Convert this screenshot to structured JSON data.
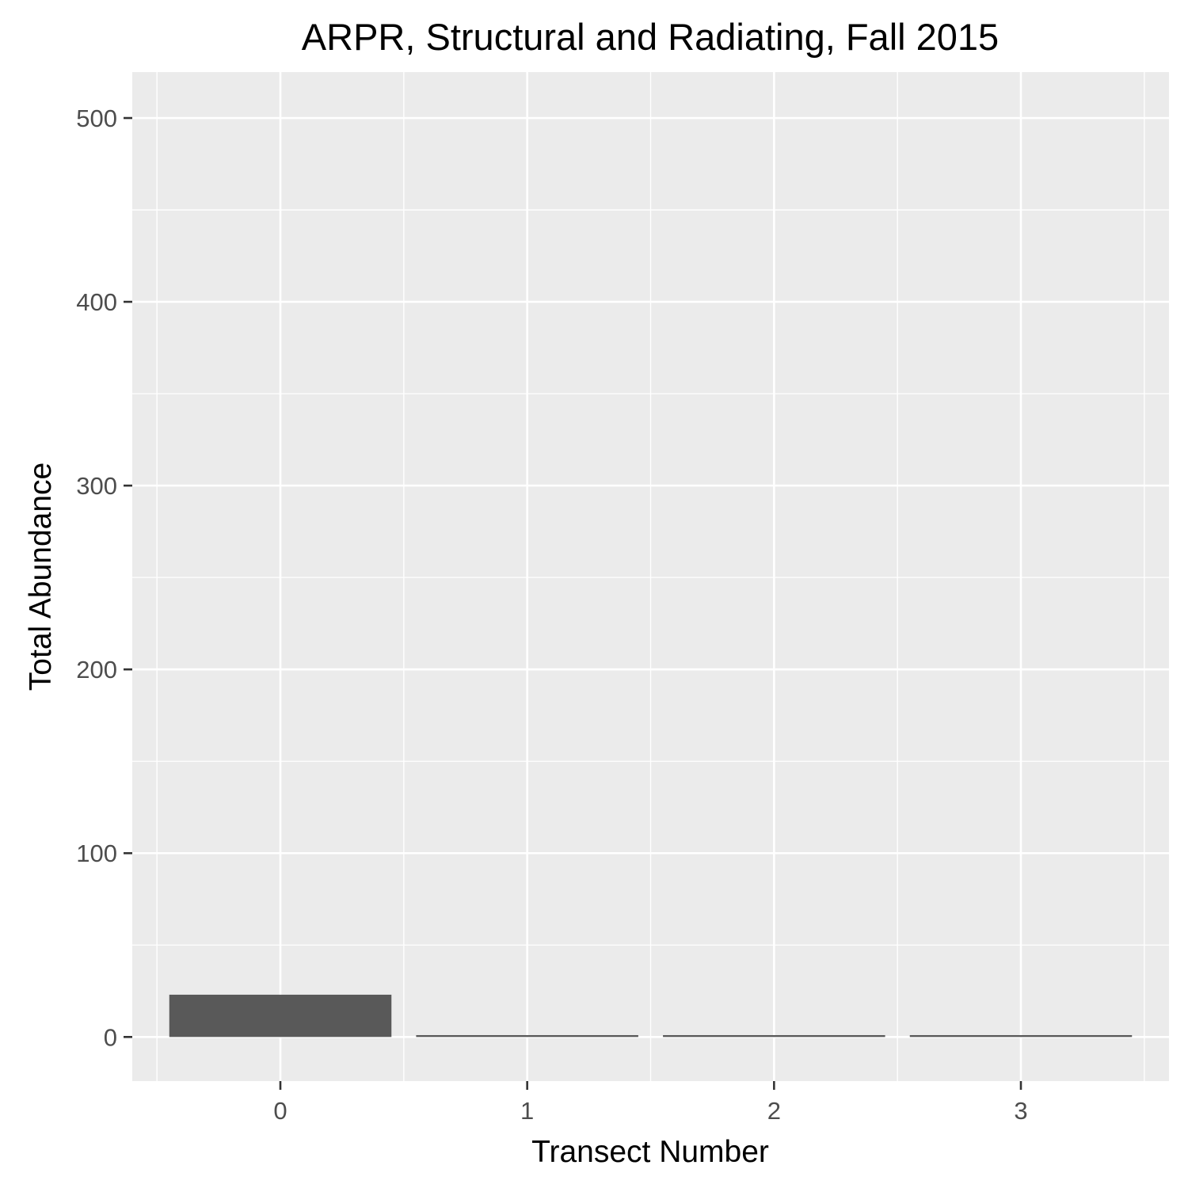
{
  "chart_data": {
    "type": "bar",
    "title": "ARPR, Structural and Radiating, Fall 2015",
    "xlabel": "Transect Number",
    "ylabel": "Total Abundance",
    "categories": [
      "0",
      "1",
      "2",
      "3"
    ],
    "values": [
      23,
      1,
      1,
      1
    ],
    "ylim": [
      -24,
      525
    ],
    "yticks": [
      "0",
      "100",
      "200",
      "300",
      "400",
      "500"
    ],
    "grid": true,
    "colors": {
      "bar": "#595959",
      "panel": "#ebebeb",
      "grid": "#ffffff"
    }
  }
}
